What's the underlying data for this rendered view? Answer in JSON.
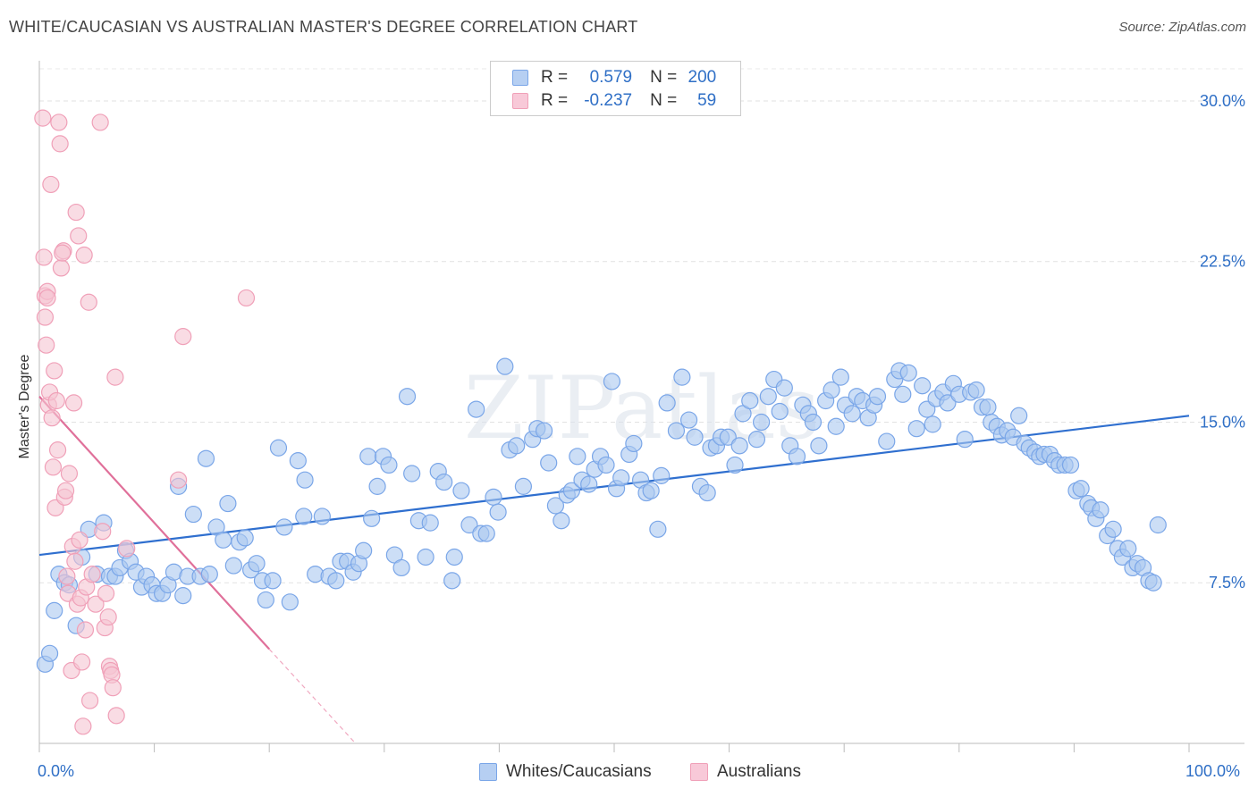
{
  "chart_data": {
    "type": "scatter",
    "title": "WHITE/CAUCASIAN VS AUSTRALIAN MASTER'S DEGREE CORRELATION CHART",
    "source": "Source: ZipAtlas.com",
    "ylabel": "Master's Degree",
    "xlim": [
      0,
      100
    ],
    "ylim": [
      0,
      31.5
    ],
    "y_ticks": [
      7.5,
      15.0,
      22.5,
      30.0
    ],
    "y_tick_labels": [
      "7.5%",
      "15.0%",
      "22.5%",
      "30.0%"
    ],
    "x_tick_labels": [
      "0.0%",
      "100.0%"
    ],
    "grid": true,
    "watermark": "ZIPatlas",
    "legend_top": [
      {
        "r_label": "R =",
        "r_value": "0.579",
        "n_label": "N =",
        "n_value": "200"
      },
      {
        "r_label": "R =",
        "r_value": "-0.237",
        "n_label": "N =",
        "n_value": "59"
      }
    ],
    "series": [
      {
        "name": "Whites/Caucasians",
        "color": "#7aa6e8",
        "fill": "#aac8f0",
        "line_color": "#2f6fcf",
        "trend": {
          "x": [
            0,
            100
          ],
          "y": [
            8.8,
            15.3
          ]
        },
        "points": [
          [
            0.5,
            3.7
          ],
          [
            0.9,
            4.2
          ],
          [
            1.3,
            6.2
          ],
          [
            1.7,
            7.9
          ],
          [
            2.2,
            7.5
          ],
          [
            2.6,
            7.4
          ],
          [
            3.2,
            5.5
          ],
          [
            3.7,
            8.7
          ],
          [
            4.3,
            10.0
          ],
          [
            5.0,
            7.9
          ],
          [
            5.6,
            10.3
          ],
          [
            6.1,
            7.8
          ],
          [
            6.6,
            7.8
          ],
          [
            7.0,
            8.2
          ],
          [
            7.5,
            9.0
          ],
          [
            7.9,
            8.5
          ],
          [
            8.4,
            8.0
          ],
          [
            8.9,
            7.3
          ],
          [
            9.3,
            7.8
          ],
          [
            9.8,
            7.4
          ],
          [
            10.2,
            7.0
          ],
          [
            10.7,
            7.0
          ],
          [
            11.2,
            7.4
          ],
          [
            11.7,
            8.0
          ],
          [
            12.1,
            12.0
          ],
          [
            12.5,
            6.9
          ],
          [
            12.9,
            7.8
          ],
          [
            13.4,
            10.7
          ],
          [
            14.0,
            7.8
          ],
          [
            14.5,
            13.3
          ],
          [
            14.8,
            7.9
          ],
          [
            15.4,
            10.1
          ],
          [
            16.0,
            9.5
          ],
          [
            16.4,
            11.2
          ],
          [
            16.9,
            8.3
          ],
          [
            17.4,
            9.4
          ],
          [
            17.9,
            9.6
          ],
          [
            18.4,
            8.1
          ],
          [
            18.9,
            8.4
          ],
          [
            19.4,
            7.6
          ],
          [
            19.7,
            6.7
          ],
          [
            20.3,
            7.6
          ],
          [
            20.8,
            13.8
          ],
          [
            21.3,
            10.1
          ],
          [
            21.8,
            6.6
          ],
          [
            22.5,
            13.2
          ],
          [
            23.0,
            10.6
          ],
          [
            23.1,
            12.3
          ],
          [
            24.0,
            7.9
          ],
          [
            24.6,
            10.6
          ],
          [
            25.2,
            7.8
          ],
          [
            25.8,
            7.6
          ],
          [
            26.2,
            8.5
          ],
          [
            26.8,
            8.5
          ],
          [
            27.3,
            8.0
          ],
          [
            27.8,
            8.4
          ],
          [
            28.2,
            9.0
          ],
          [
            28.6,
            13.4
          ],
          [
            28.9,
            10.5
          ],
          [
            29.4,
            12.0
          ],
          [
            29.9,
            13.4
          ],
          [
            30.4,
            13.0
          ],
          [
            30.9,
            8.8
          ],
          [
            31.5,
            8.2
          ],
          [
            32.0,
            16.2
          ],
          [
            32.4,
            12.6
          ],
          [
            33.0,
            10.4
          ],
          [
            33.6,
            8.7
          ],
          [
            34.0,
            10.3
          ],
          [
            34.7,
            12.7
          ],
          [
            35.2,
            12.2
          ],
          [
            35.9,
            7.6
          ],
          [
            36.1,
            8.7
          ],
          [
            36.7,
            11.8
          ],
          [
            37.4,
            10.2
          ],
          [
            38.0,
            15.6
          ],
          [
            38.4,
            9.8
          ],
          [
            38.9,
            9.8
          ],
          [
            39.5,
            11.5
          ],
          [
            39.9,
            10.8
          ],
          [
            40.5,
            17.6
          ],
          [
            40.9,
            13.7
          ],
          [
            41.5,
            13.9
          ],
          [
            42.1,
            12.0
          ],
          [
            42.9,
            14.2
          ],
          [
            43.3,
            14.7
          ],
          [
            43.9,
            14.6
          ],
          [
            44.3,
            13.1
          ],
          [
            44.9,
            11.1
          ],
          [
            45.4,
            10.4
          ],
          [
            45.9,
            11.6
          ],
          [
            46.3,
            11.8
          ],
          [
            46.8,
            13.4
          ],
          [
            47.2,
            12.3
          ],
          [
            47.8,
            12.1
          ],
          [
            48.3,
            12.8
          ],
          [
            48.8,
            13.4
          ],
          [
            49.3,
            13.0
          ],
          [
            49.8,
            16.9
          ],
          [
            50.2,
            11.9
          ],
          [
            50.6,
            12.4
          ],
          [
            51.3,
            13.5
          ],
          [
            51.7,
            14.0
          ],
          [
            52.3,
            12.3
          ],
          [
            52.8,
            11.7
          ],
          [
            53.2,
            11.8
          ],
          [
            53.8,
            10.0
          ],
          [
            54.1,
            12.5
          ],
          [
            54.6,
            15.9
          ],
          [
            55.4,
            14.6
          ],
          [
            55.9,
            17.1
          ],
          [
            56.5,
            15.1
          ],
          [
            57.0,
            14.3
          ],
          [
            57.5,
            12.0
          ],
          [
            58.1,
            11.7
          ],
          [
            58.4,
            13.8
          ],
          [
            58.9,
            13.9
          ],
          [
            59.3,
            14.3
          ],
          [
            59.9,
            14.3
          ],
          [
            60.5,
            13.0
          ],
          [
            60.9,
            13.9
          ],
          [
            61.2,
            15.4
          ],
          [
            61.8,
            16.0
          ],
          [
            62.4,
            14.2
          ],
          [
            62.8,
            15.0
          ],
          [
            63.4,
            16.2
          ],
          [
            63.9,
            17.0
          ],
          [
            64.4,
            15.5
          ],
          [
            64.8,
            16.6
          ],
          [
            65.3,
            13.9
          ],
          [
            65.9,
            13.4
          ],
          [
            66.4,
            15.8
          ],
          [
            66.9,
            15.4
          ],
          [
            67.3,
            15.0
          ],
          [
            67.8,
            13.9
          ],
          [
            68.4,
            16.0
          ],
          [
            68.9,
            16.5
          ],
          [
            69.3,
            14.8
          ],
          [
            69.7,
            17.1
          ],
          [
            70.1,
            15.8
          ],
          [
            70.7,
            15.4
          ],
          [
            71.1,
            16.2
          ],
          [
            71.6,
            16.0
          ],
          [
            72.1,
            15.2
          ],
          [
            72.6,
            15.8
          ],
          [
            72.9,
            16.2
          ],
          [
            73.7,
            14.1
          ],
          [
            74.4,
            17.0
          ],
          [
            74.8,
            17.4
          ],
          [
            75.1,
            16.3
          ],
          [
            75.6,
            17.3
          ],
          [
            76.3,
            14.7
          ],
          [
            76.8,
            16.7
          ],
          [
            77.2,
            15.6
          ],
          [
            77.7,
            14.9
          ],
          [
            78.0,
            16.1
          ],
          [
            78.6,
            16.4
          ],
          [
            79.0,
            15.9
          ],
          [
            79.5,
            16.8
          ],
          [
            80.0,
            16.3
          ],
          [
            80.5,
            14.2
          ],
          [
            81.0,
            16.4
          ],
          [
            81.5,
            16.5
          ],
          [
            82.0,
            15.7
          ],
          [
            82.5,
            15.7
          ],
          [
            82.8,
            15.0
          ],
          [
            83.3,
            14.8
          ],
          [
            83.7,
            14.4
          ],
          [
            84.2,
            14.6
          ],
          [
            84.7,
            14.3
          ],
          [
            85.2,
            15.3
          ],
          [
            85.7,
            14.0
          ],
          [
            86.1,
            13.8
          ],
          [
            86.6,
            13.6
          ],
          [
            87.0,
            13.4
          ],
          [
            87.4,
            13.5
          ],
          [
            87.9,
            13.5
          ],
          [
            88.3,
            13.2
          ],
          [
            88.7,
            13.0
          ],
          [
            89.2,
            13.0
          ],
          [
            89.7,
            13.0
          ],
          [
            90.2,
            11.8
          ],
          [
            90.6,
            11.9
          ],
          [
            91.2,
            11.2
          ],
          [
            91.5,
            11.0
          ],
          [
            91.9,
            10.5
          ],
          [
            92.3,
            10.9
          ],
          [
            92.9,
            9.7
          ],
          [
            93.4,
            10.0
          ],
          [
            93.8,
            9.1
          ],
          [
            94.2,
            8.7
          ],
          [
            94.7,
            9.1
          ],
          [
            95.1,
            8.2
          ],
          [
            95.5,
            8.4
          ],
          [
            96.0,
            8.2
          ],
          [
            96.5,
            7.6
          ],
          [
            96.9,
            7.5
          ],
          [
            97.3,
            10.2
          ]
        ]
      },
      {
        "name": "Australians",
        "color": "#f0a0b8",
        "fill": "#f5c4d2",
        "line_color": "#e0709a",
        "trend": {
          "x": [
            0,
            20
          ],
          "y": [
            16.2,
            4.4
          ]
        },
        "trend_dashed": {
          "x": [
            20,
            27.5
          ],
          "y": [
            4.4,
            0.0
          ]
        },
        "points": [
          [
            0.3,
            29.2
          ],
          [
            0.4,
            22.7
          ],
          [
            0.5,
            20.9
          ],
          [
            0.5,
            19.9
          ],
          [
            0.6,
            18.6
          ],
          [
            0.7,
            21.1
          ],
          [
            0.7,
            20.8
          ],
          [
            0.8,
            15.8
          ],
          [
            0.9,
            16.4
          ],
          [
            1.1,
            15.2
          ],
          [
            1.2,
            12.9
          ],
          [
            1.3,
            17.4
          ],
          [
            1.4,
            11.0
          ],
          [
            1.5,
            16.0
          ],
          [
            1.6,
            13.7
          ],
          [
            1.7,
            29.0
          ],
          [
            1.8,
            28.0
          ],
          [
            1.9,
            22.2
          ],
          [
            2.1,
            23.0
          ],
          [
            2.2,
            11.5
          ],
          [
            2.3,
            11.8
          ],
          [
            2.4,
            7.8
          ],
          [
            2.5,
            7.0
          ],
          [
            2.6,
            12.6
          ],
          [
            2.8,
            3.4
          ],
          [
            2.9,
            9.2
          ],
          [
            3.0,
            15.9
          ],
          [
            3.1,
            8.5
          ],
          [
            3.2,
            24.8
          ],
          [
            3.3,
            6.5
          ],
          [
            3.4,
            23.7
          ],
          [
            3.5,
            9.5
          ],
          [
            3.6,
            6.8
          ],
          [
            3.7,
            3.8
          ],
          [
            3.8,
            0.8
          ],
          [
            3.9,
            22.8
          ],
          [
            4.0,
            5.3
          ],
          [
            4.1,
            7.3
          ],
          [
            4.3,
            20.6
          ],
          [
            4.4,
            2.0
          ],
          [
            4.6,
            7.9
          ],
          [
            4.9,
            6.5
          ],
          [
            5.3,
            29.0
          ],
          [
            5.5,
            9.9
          ],
          [
            5.7,
            5.4
          ],
          [
            5.8,
            7.0
          ],
          [
            6.0,
            5.9
          ],
          [
            6.1,
            3.6
          ],
          [
            6.2,
            3.4
          ],
          [
            6.3,
            3.2
          ],
          [
            6.4,
            2.6
          ],
          [
            6.6,
            17.1
          ],
          [
            6.7,
            1.3
          ],
          [
            7.6,
            9.1
          ],
          [
            12.1,
            12.3
          ],
          [
            12.5,
            19.0
          ],
          [
            18.0,
            20.8
          ],
          [
            2.0,
            22.9
          ],
          [
            1.0,
            26.1
          ]
        ]
      }
    ]
  }
}
